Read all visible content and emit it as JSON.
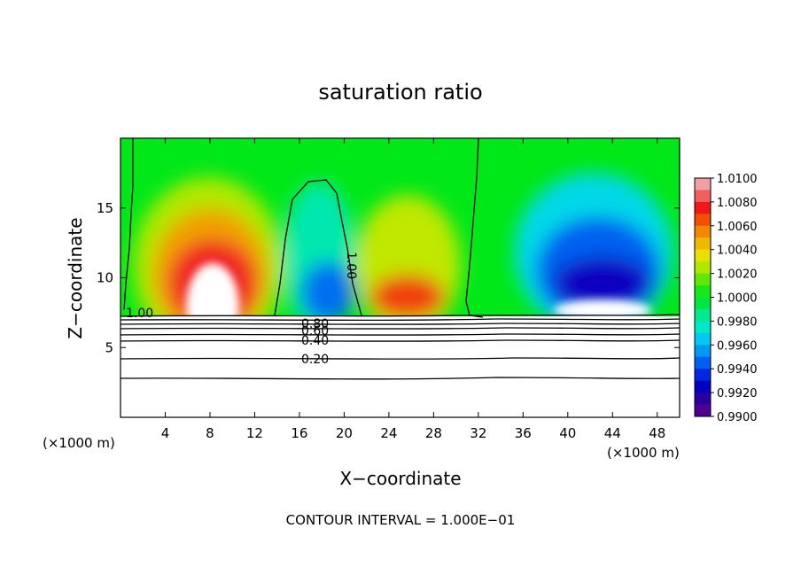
{
  "chart_data": {
    "type": "heatmap",
    "title": "saturation ratio",
    "xlabel": "X−coordinate",
    "ylabel": "Z−coordinate",
    "x_unit": "(×1000 m)",
    "z_unit": "(×1000 m)",
    "xlim": [
      0,
      50
    ],
    "ylim": [
      0,
      20
    ],
    "x_ticks": [
      4,
      8,
      12,
      16,
      20,
      24,
      28,
      32,
      36,
      40,
      44,
      48
    ],
    "y_ticks": [
      5,
      10,
      15
    ],
    "colorbar": {
      "min": 0.99,
      "max": 1.01,
      "tick_labels": [
        "1.0100",
        "1.0080",
        "1.0060",
        "1.0040",
        "1.0020",
        "1.0000",
        "0.9980",
        "0.9960",
        "0.9940",
        "0.9920",
        "0.9900"
      ],
      "colors": [
        "#f0a0a0",
        "#f06060",
        "#f01818",
        "#f05000",
        "#f08800",
        "#f0b800",
        "#e8e000",
        "#b0e800",
        "#60e800",
        "#18e818",
        "#00e840",
        "#00e890",
        "#00e8c8",
        "#00c8f0",
        "#0098f0",
        "#0060f0",
        "#0028e0",
        "#0000c0",
        "#2800a0",
        "#500090"
      ]
    },
    "contour_labels": [
      "1.00",
      "1.00",
      "0.80",
      "0.60",
      "0.40",
      "0.20"
    ],
    "footer": "CONTOUR INTERVAL = 1.000E−01"
  }
}
